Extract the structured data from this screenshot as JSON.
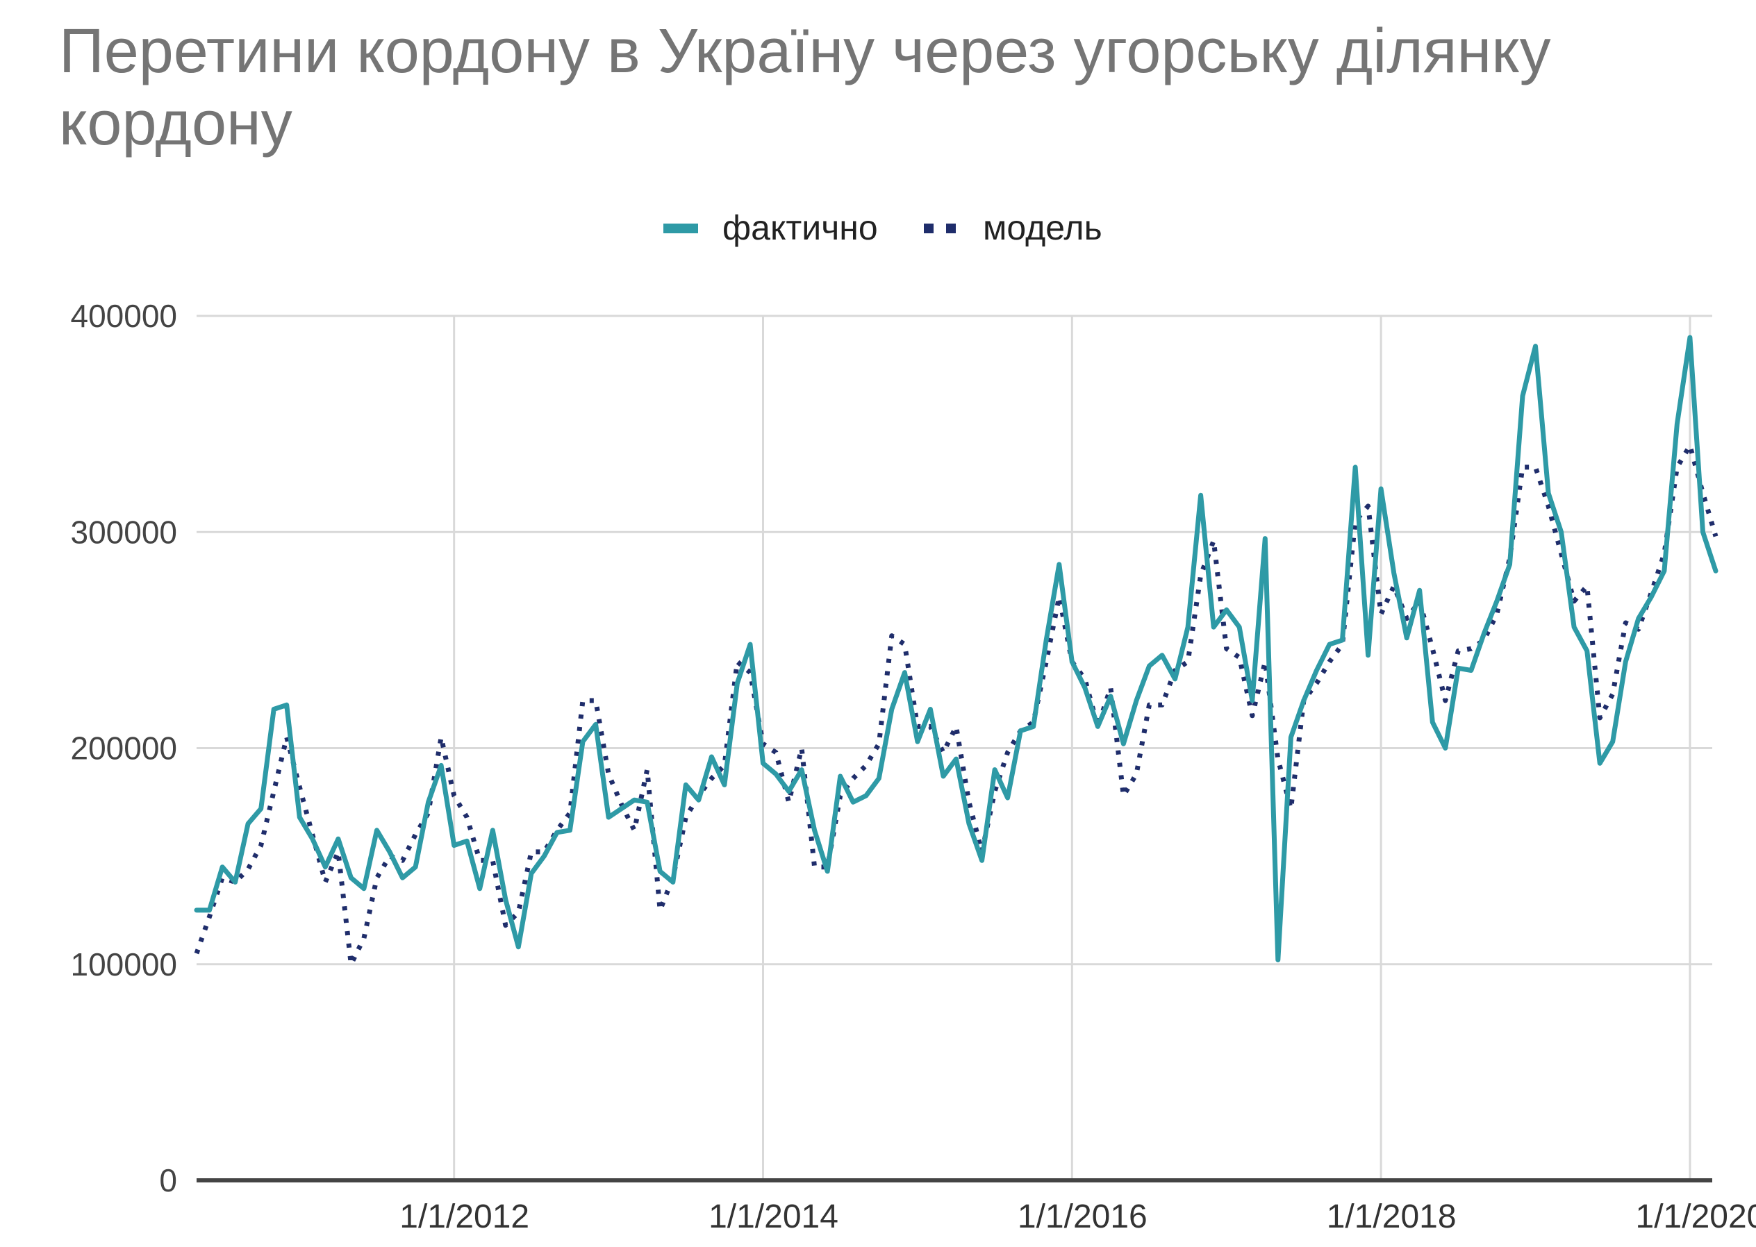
{
  "chart_data": {
    "type": "line",
    "title": "Перетини кордону в Україну через  угорську ділянку кордону",
    "xlabel": "",
    "ylabel": "",
    "ylim": [
      0,
      400000
    ],
    "yticks": [
      "0",
      "100000",
      "200000",
      "300000",
      "400000"
    ],
    "xticks": [
      "1/1/2012",
      "1/1/2014",
      "1/1/2016",
      "1/1/2018",
      "1/1/2020"
    ],
    "grid": true,
    "legend_position": "top-center",
    "start_date": "2010-05",
    "series": [
      {
        "name": "фактично",
        "style": "solid",
        "color": "#2e9aa6",
        "values": [
          125000,
          125000,
          145000,
          138000,
          165000,
          172000,
          218000,
          220000,
          168000,
          158000,
          145000,
          158000,
          140000,
          135000,
          162000,
          152000,
          140000,
          145000,
          175000,
          192000,
          155000,
          157000,
          135000,
          162000,
          130000,
          108000,
          142000,
          150000,
          161000,
          162000,
          203000,
          211000,
          168000,
          172000,
          176000,
          175000,
          143000,
          138000,
          183000,
          176000,
          196000,
          183000,
          230000,
          248000,
          193000,
          188000,
          180000,
          190000,
          162000,
          143000,
          187000,
          175000,
          178000,
          186000,
          218000,
          235000,
          203000,
          218000,
          187000,
          195000,
          165000,
          148000,
          190000,
          177000,
          208000,
          210000,
          250000,
          285000,
          240000,
          228000,
          210000,
          224000,
          202000,
          222000,
          238000,
          243000,
          232000,
          256000,
          317000,
          256000,
          264000,
          256000,
          222000,
          297000,
          102000,
          205000,
          222000,
          236000,
          248000,
          250000,
          330000,
          243000,
          320000,
          281000,
          251000,
          273000,
          212000,
          200000,
          237000,
          236000,
          253000,
          268000,
          285000,
          363000,
          386000,
          318000,
          300000,
          256000,
          245000,
          193000,
          203000,
          240000,
          260000,
          270000,
          282000,
          350000,
          390000,
          300000,
          282000
        ]
      },
      {
        "name": "модель",
        "style": "dotted",
        "color": "#1f2d6b",
        "values": [
          105000,
          122000,
          140000,
          138000,
          144000,
          155000,
          180000,
          205000,
          182000,
          160000,
          138000,
          152000,
          100000,
          112000,
          140000,
          150000,
          148000,
          160000,
          170000,
          205000,
          178000,
          168000,
          148000,
          148000,
          118000,
          124000,
          152000,
          152000,
          162000,
          170000,
          222000,
          222000,
          188000,
          174000,
          162000,
          190000,
          125000,
          140000,
          168000,
          178000,
          186000,
          192000,
          240000,
          235000,
          202000,
          198000,
          175000,
          200000,
          145000,
          145000,
          178000,
          186000,
          192000,
          202000,
          252000,
          248000,
          210000,
          210000,
          198000,
          210000,
          175000,
          152000,
          180000,
          198000,
          208000,
          212000,
          240000,
          270000,
          240000,
          232000,
          210000,
          228000,
          178000,
          188000,
          220000,
          220000,
          236000,
          240000,
          280000,
          296000,
          246000,
          242000,
          215000,
          240000,
          195000,
          172000,
          222000,
          230000,
          240000,
          248000,
          305000,
          312000,
          262000,
          275000,
          260000,
          268000,
          246000,
          222000,
          245000,
          246000,
          250000,
          262000,
          288000,
          330000,
          330000,
          312000,
          290000,
          268000,
          275000,
          214000,
          225000,
          258000,
          255000,
          272000,
          290000,
          330000,
          340000,
          318000,
          298000
        ]
      }
    ]
  }
}
